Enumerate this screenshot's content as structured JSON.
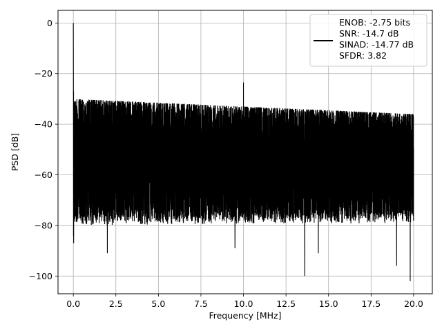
{
  "chart_data": {
    "type": "line",
    "title": "",
    "xlabel": "Frequency [MHz]",
    "ylabel": "PSD [dB]",
    "xlim": [
      -0.9,
      21.1
    ],
    "ylim": [
      -107,
      5
    ],
    "x_ticks": [
      0.0,
      2.5,
      5.0,
      7.5,
      10.0,
      12.5,
      15.0,
      17.5,
      20.0
    ],
    "x_tick_labels": [
      "0.0",
      "2.5",
      "5.0",
      "7.5",
      "10.0",
      "12.5",
      "15.0",
      "17.5",
      "20.0"
    ],
    "y_ticks": [
      0,
      -20,
      -40,
      -60,
      -80,
      -100
    ],
    "y_tick_labels": [
      "0",
      "−20",
      "−40",
      "−60",
      "−80",
      "−100"
    ],
    "grid": true,
    "legend_position": "top-right",
    "legend": [
      "ENOB: -2.75 bits",
      "SNR: -14.7 dB",
      "SINAD: -14.77 dB",
      "SFDR: 3.82"
    ],
    "series": [
      {
        "color": "#000000",
        "x_range": [
          0,
          20
        ],
        "noise_top_start": -30,
        "noise_top_end": -36,
        "noise_bottom_start": -76,
        "noise_bottom_end": -75,
        "peaks": [
          {
            "x": 0.0,
            "y": 0
          },
          {
            "x": 10.0,
            "y": -23.5
          }
        ],
        "dips": [
          {
            "x": 0.02,
            "y": -87
          },
          {
            "x": 2.0,
            "y": -91
          },
          {
            "x": 9.5,
            "y": -89
          },
          {
            "x": 13.6,
            "y": -100
          },
          {
            "x": 14.4,
            "y": -91
          },
          {
            "x": 19.0,
            "y": -96
          },
          {
            "x": 19.8,
            "y": -102
          }
        ]
      }
    ]
  }
}
